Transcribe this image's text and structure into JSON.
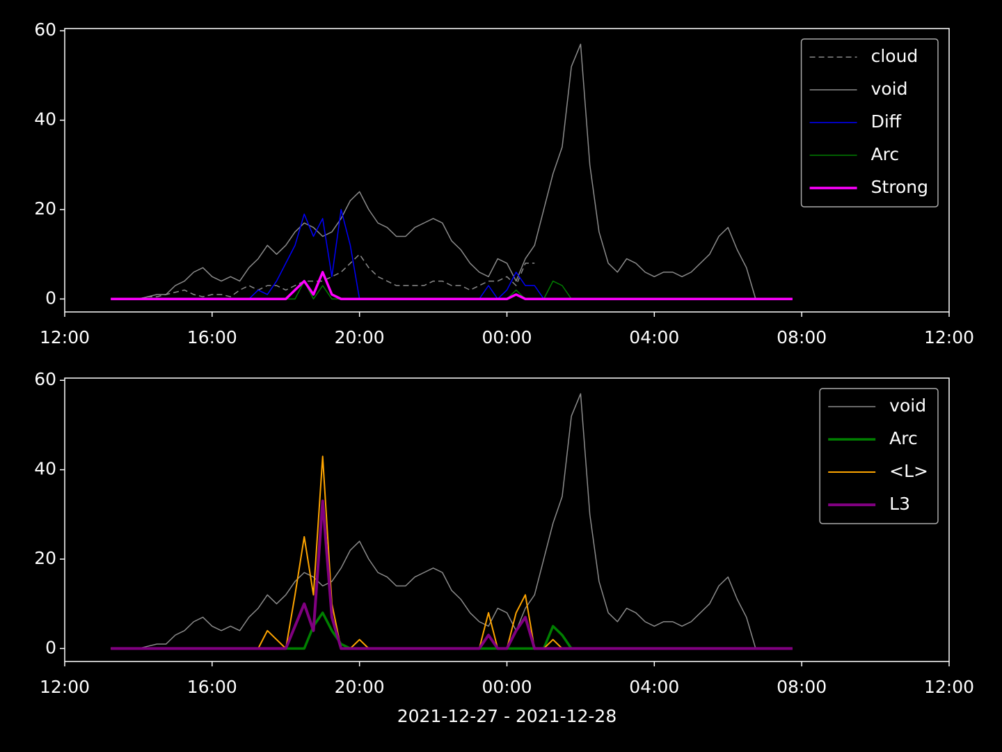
{
  "chart_data": [
    {
      "type": "line",
      "x": [
        13.25,
        13.5,
        13.75,
        14,
        14.25,
        14.5,
        14.75,
        15,
        15.25,
        15.5,
        15.75,
        16,
        16.25,
        16.5,
        16.75,
        17,
        17.25,
        17.5,
        17.75,
        18,
        18.25,
        18.5,
        18.75,
        19,
        19.25,
        19.5,
        19.75,
        20,
        20.25,
        20.5,
        20.75,
        21,
        21.25,
        21.5,
        21.75,
        22,
        22.25,
        22.5,
        22.75,
        23,
        23.25,
        23.5,
        23.75,
        24,
        24.25,
        24.5,
        24.75,
        25,
        25.25,
        25.5,
        25.75,
        26,
        26.25,
        26.5,
        26.75,
        27,
        27.25,
        27.5,
        27.75,
        28,
        28.25,
        28.5,
        28.75,
        29,
        29.25,
        29.5,
        29.75,
        30,
        30.25,
        30.5,
        30.75,
        31,
        31.25,
        31.5,
        31.75
      ],
      "xlim": [
        12,
        36
      ],
      "xticks": [
        {
          "value": 12,
          "label": "12:00"
        },
        {
          "value": 16,
          "label": "16:00"
        },
        {
          "value": 20,
          "label": "20:00"
        },
        {
          "value": 24,
          "label": "00:00"
        },
        {
          "value": 28,
          "label": "04:00"
        },
        {
          "value": 32,
          "label": "08:00"
        },
        {
          "value": 36,
          "label": "12:00"
        }
      ],
      "ylim": [
        -2.9,
        60.5
      ],
      "yticks": [
        0,
        20,
        40,
        60
      ],
      "legend": "upper right",
      "series": [
        {
          "name": "cloud",
          "color": "#8c8c8c",
          "linestyle": "dashed",
          "linewidth": 1.5,
          "values": [
            0,
            0,
            0,
            0,
            0.5,
            0.5,
            1,
            1.5,
            2,
            1,
            0.5,
            1,
            1,
            0.5,
            2,
            3,
            2,
            3,
            3,
            2,
            3,
            4,
            4,
            4,
            5,
            6,
            8,
            10,
            7,
            5,
            4,
            3,
            3,
            3,
            3,
            4,
            4,
            3,
            3,
            2,
            3,
            4,
            4,
            5,
            3,
            8,
            8,
            null,
            null,
            null,
            null,
            null,
            null,
            null,
            null,
            null,
            null,
            null,
            null,
            null,
            null,
            null,
            null,
            null,
            null,
            null,
            null,
            null,
            null,
            null,
            null,
            null,
            null,
            null,
            null
          ]
        },
        {
          "name": "void",
          "color": "#8c8c8c",
          "linestyle": "solid",
          "linewidth": 1.5,
          "values": [
            0,
            0,
            0,
            0,
            0.5,
            1,
            1,
            3,
            4,
            6,
            7,
            5,
            4,
            5,
            4,
            7,
            9,
            12,
            10,
            12,
            15,
            17,
            16,
            14,
            15,
            18,
            22,
            24,
            20,
            17,
            16,
            14,
            14,
            16,
            17,
            18,
            17,
            13,
            11,
            8,
            6,
            5,
            9,
            8,
            4,
            9,
            12,
            20,
            28,
            34,
            52,
            57,
            30,
            15,
            8,
            6,
            9,
            8,
            6,
            5,
            6,
            6,
            5,
            6,
            8,
            10,
            14,
            16,
            11,
            7,
            0,
            null,
            null,
            null,
            null
          ]
        },
        {
          "name": "Diff",
          "color": "#0000ff",
          "linestyle": "solid",
          "linewidth": 1.5,
          "values": [
            0,
            0,
            0,
            0,
            0,
            0,
            0,
            0,
            0,
            0,
            0,
            0,
            0,
            0,
            0,
            0,
            2,
            1,
            4,
            8,
            12,
            19,
            14,
            18,
            5,
            20,
            12,
            0,
            0,
            0,
            0,
            0,
            0,
            0,
            0,
            0,
            0,
            0,
            0,
            0,
            0,
            3,
            0,
            2,
            6,
            3,
            3,
            0,
            0,
            0,
            0,
            0,
            0,
            0,
            0,
            0,
            0,
            0,
            0,
            0,
            0,
            0,
            0,
            0,
            0,
            0,
            0,
            0,
            0,
            0,
            0,
            0,
            0,
            0,
            0
          ]
        },
        {
          "name": "Arc",
          "color": "#008000",
          "linestyle": "solid",
          "linewidth": 1.5,
          "values": [
            0,
            0,
            0,
            0,
            0,
            0,
            0,
            0,
            0,
            0,
            0,
            0,
            0,
            0,
            0,
            0,
            0,
            0,
            0,
            0,
            0,
            4,
            0,
            3,
            0,
            0,
            0,
            0,
            0,
            0,
            0,
            0,
            0,
            0,
            0,
            0,
            0,
            0,
            0,
            0,
            0,
            0,
            0,
            0,
            2,
            0,
            0,
            0,
            4,
            3,
            0,
            0,
            0,
            0,
            0,
            0,
            0,
            0,
            0,
            0,
            0,
            0,
            0,
            0,
            0,
            0,
            0,
            0,
            0,
            0,
            0,
            0,
            0,
            0,
            0
          ]
        },
        {
          "name": "Strong",
          "color": "#ff00ff",
          "linestyle": "solid",
          "linewidth": 3.5,
          "values": [
            0,
            0,
            0,
            0,
            0,
            0,
            0,
            0,
            0,
            0,
            0,
            0,
            0,
            0,
            0,
            0,
            0,
            0,
            0,
            0,
            2,
            4,
            1,
            6,
            1,
            0,
            0,
            0,
            0,
            0,
            0,
            0,
            0,
            0,
            0,
            0,
            0,
            0,
            0,
            0,
            0,
            0,
            0,
            0,
            1,
            0,
            0,
            0,
            0,
            0,
            0,
            0,
            0,
            0,
            0,
            0,
            0,
            0,
            0,
            0,
            0,
            0,
            0,
            0,
            0,
            0,
            0,
            0,
            0,
            0,
            0,
            0,
            0,
            0,
            0
          ]
        }
      ]
    },
    {
      "type": "line",
      "x": [
        13.25,
        13.5,
        13.75,
        14,
        14.25,
        14.5,
        14.75,
        15,
        15.25,
        15.5,
        15.75,
        16,
        16.25,
        16.5,
        16.75,
        17,
        17.25,
        17.5,
        17.75,
        18,
        18.25,
        18.5,
        18.75,
        19,
        19.25,
        19.5,
        19.75,
        20,
        20.25,
        20.5,
        20.75,
        21,
        21.25,
        21.5,
        21.75,
        22,
        22.25,
        22.5,
        22.75,
        23,
        23.25,
        23.5,
        23.75,
        24,
        24.25,
        24.5,
        24.75,
        25,
        25.25,
        25.5,
        25.75,
        26,
        26.25,
        26.5,
        26.75,
        27,
        27.25,
        27.5,
        27.75,
        28,
        28.25,
        28.5,
        28.75,
        29,
        29.25,
        29.5,
        29.75,
        30,
        30.25,
        30.5,
        30.75,
        31,
        31.25,
        31.5,
        31.75
      ],
      "xlim": [
        12,
        36
      ],
      "xticks": [
        {
          "value": 12,
          "label": "12:00"
        },
        {
          "value": 16,
          "label": "16:00"
        },
        {
          "value": 20,
          "label": "20:00"
        },
        {
          "value": 24,
          "label": "00:00"
        },
        {
          "value": 28,
          "label": "04:00"
        },
        {
          "value": 32,
          "label": "08:00"
        },
        {
          "value": 36,
          "label": "12:00"
        }
      ],
      "ylim": [
        -2.9,
        60.5
      ],
      "yticks": [
        0,
        20,
        40,
        60
      ],
      "xlabel": "2021-12-27 - 2021-12-28",
      "legend": "upper right",
      "series": [
        {
          "name": "void",
          "color": "#8c8c8c",
          "linestyle": "solid",
          "linewidth": 1.5,
          "values": [
            0,
            0,
            0,
            0,
            0.5,
            1,
            1,
            3,
            4,
            6,
            7,
            5,
            4,
            5,
            4,
            7,
            9,
            12,
            10,
            12,
            15,
            17,
            16,
            14,
            15,
            18,
            22,
            24,
            20,
            17,
            16,
            14,
            14,
            16,
            17,
            18,
            17,
            13,
            11,
            8,
            6,
            5,
            9,
            8,
            4,
            9,
            12,
            20,
            28,
            34,
            52,
            57,
            30,
            15,
            8,
            6,
            9,
            8,
            6,
            5,
            6,
            6,
            5,
            6,
            8,
            10,
            14,
            16,
            11,
            7,
            0,
            null,
            null,
            null,
            null
          ]
        },
        {
          "name": "Arc",
          "color": "#008000",
          "linestyle": "solid",
          "linewidth": 3.5,
          "values": [
            0,
            0,
            0,
            0,
            0,
            0,
            0,
            0,
            0,
            0,
            0,
            0,
            0,
            0,
            0,
            0,
            0,
            0,
            0,
            0,
            0,
            0,
            5,
            8,
            4,
            1,
            0,
            0,
            0,
            0,
            0,
            0,
            0,
            0,
            0,
            0,
            0,
            0,
            0,
            0,
            0,
            0,
            0,
            0,
            0,
            0,
            0,
            0,
            5,
            3,
            0,
            0,
            0,
            0,
            0,
            0,
            0,
            0,
            0,
            0,
            0,
            0,
            0,
            0,
            0,
            0,
            0,
            0,
            0,
            0,
            0,
            0,
            0,
            0,
            0
          ]
        },
        {
          "name": "<L>",
          "color": "#ffa500",
          "linestyle": "solid",
          "linewidth": 2,
          "values": [
            0,
            0,
            0,
            0,
            0,
            0,
            0,
            0,
            0,
            0,
            0,
            0,
            0,
            0,
            0,
            0,
            0,
            4,
            2,
            0,
            12,
            25,
            12,
            43,
            10,
            0,
            0,
            2,
            0,
            0,
            0,
            0,
            0,
            0,
            0,
            0,
            0,
            0,
            0,
            0,
            0,
            8,
            0,
            0,
            8,
            12,
            0,
            0,
            2,
            0,
            0,
            0,
            0,
            0,
            0,
            0,
            0,
            0,
            0,
            0,
            0,
            0,
            0,
            0,
            0,
            0,
            0,
            0,
            0,
            0,
            0,
            0,
            0,
            0,
            0
          ]
        },
        {
          "name": "L3",
          "color": "#800080",
          "linestyle": "solid",
          "linewidth": 4,
          "values": [
            0,
            0,
            0,
            0,
            0,
            0,
            0,
            0,
            0,
            0,
            0,
            0,
            0,
            0,
            0,
            0,
            0,
            0,
            0,
            0,
            5,
            10,
            4,
            33,
            7,
            0,
            0,
            0,
            0,
            0,
            0,
            0,
            0,
            0,
            0,
            0,
            0,
            0,
            0,
            0,
            0,
            3,
            0,
            0,
            4,
            7,
            0,
            0,
            0,
            0,
            0,
            0,
            0,
            0,
            0,
            0,
            0,
            0,
            0,
            0,
            0,
            0,
            0,
            0,
            0,
            0,
            0,
            0,
            0,
            0,
            0,
            0,
            0,
            0,
            0
          ]
        }
      ]
    }
  ]
}
